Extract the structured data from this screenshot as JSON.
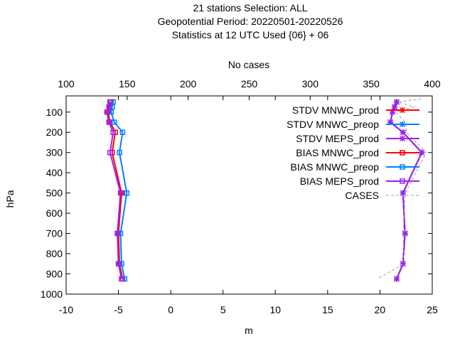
{
  "chart_data": {
    "type": "line",
    "title": [
      "21 stations Selection: ALL",
      "Geopotential  Period: 20220501-20220526",
      "Statistics at 12 UTC  Used {06} + 06"
    ],
    "xlabel": "m",
    "ylabel": "hPa",
    "x2label": "No cases",
    "xlim": [
      -10,
      25
    ],
    "x2lim": [
      100,
      400
    ],
    "ylim": [
      1000,
      20
    ],
    "xticks": [
      "-10",
      "-5",
      "0",
      "5",
      "10",
      "15",
      "20",
      "25"
    ],
    "x2ticks": [
      "100",
      "150",
      "200",
      "250",
      "300",
      "350",
      "400"
    ],
    "yticks": [
      "100",
      "200",
      "300",
      "400",
      "500",
      "600",
      "700",
      "800",
      "900",
      "1000"
    ],
    "legend_position": "top-right",
    "series": [
      {
        "name": "STDV MNWC_prod",
        "color": "#ff0000",
        "marker": "star",
        "axis": "x",
        "points": [
          [
            21.6,
            50
          ],
          [
            21.4,
            75
          ],
          [
            21.2,
            100
          ],
          [
            21.0,
            150
          ],
          [
            22.2,
            200
          ],
          [
            24.0,
            300
          ],
          [
            22.2,
            500
          ],
          [
            22.4,
            700
          ],
          [
            22.2,
            850
          ],
          [
            21.6,
            925
          ]
        ]
      },
      {
        "name": "STDV MNWC_preop",
        "color": "#0080ff",
        "marker": "star",
        "axis": "x",
        "points": [
          [
            21.6,
            50
          ],
          [
            21.4,
            75
          ],
          [
            21.2,
            100
          ],
          [
            21.0,
            150
          ],
          [
            22.2,
            200
          ],
          [
            24.0,
            300
          ],
          [
            22.2,
            500
          ],
          [
            22.4,
            700
          ],
          [
            22.2,
            850
          ],
          [
            21.6,
            925
          ]
        ]
      },
      {
        "name": "STDV MEPS_prod",
        "color": "#a020f0",
        "marker": "star",
        "axis": "x",
        "points": [
          [
            21.6,
            50
          ],
          [
            21.4,
            75
          ],
          [
            21.2,
            100
          ],
          [
            21.0,
            150
          ],
          [
            22.2,
            200
          ],
          [
            24.0,
            300
          ],
          [
            22.2,
            500
          ],
          [
            22.4,
            700
          ],
          [
            22.2,
            850
          ],
          [
            21.6,
            925
          ]
        ]
      },
      {
        "name": "BIAS MNWC_prod",
        "color": "#ff0000",
        "marker": "square",
        "axis": "x",
        "points": [
          [
            -5.7,
            50
          ],
          [
            -5.8,
            75
          ],
          [
            -6.0,
            100
          ],
          [
            -5.8,
            150
          ],
          [
            -5.3,
            200
          ],
          [
            -5.6,
            300
          ],
          [
            -4.7,
            500
          ],
          [
            -5.0,
            700
          ],
          [
            -4.9,
            850
          ],
          [
            -4.6,
            925
          ]
        ]
      },
      {
        "name": "BIAS MNWC_preop",
        "color": "#0080ff",
        "marker": "square",
        "axis": "x",
        "points": [
          [
            -5.5,
            50
          ],
          [
            -5.6,
            75
          ],
          [
            -5.7,
            100
          ],
          [
            -5.4,
            150
          ],
          [
            -4.6,
            200
          ],
          [
            -4.9,
            300
          ],
          [
            -4.2,
            500
          ],
          [
            -4.8,
            700
          ],
          [
            -4.7,
            850
          ],
          [
            -4.4,
            925
          ]
        ]
      },
      {
        "name": "BIAS MEPS_prod",
        "color": "#a020f0",
        "marker": "square",
        "axis": "x",
        "points": [
          [
            -5.8,
            50
          ],
          [
            -5.9,
            75
          ],
          [
            -6.1,
            100
          ],
          [
            -5.9,
            150
          ],
          [
            -5.5,
            200
          ],
          [
            -5.8,
            300
          ],
          [
            -4.8,
            500
          ],
          [
            -5.1,
            700
          ],
          [
            -5.0,
            850
          ],
          [
            -4.7,
            925
          ]
        ]
      },
      {
        "name": "CASES",
        "color": "#a0a0a0",
        "marker": "none",
        "dash": true,
        "axis": "x2",
        "points": [
          [
            391,
            35
          ],
          [
            372,
            50
          ],
          [
            385,
            75
          ],
          [
            370,
            100
          ],
          [
            378,
            150
          ],
          [
            379,
            200
          ],
          [
            395,
            300
          ],
          [
            378,
            500
          ],
          [
            376,
            700
          ],
          [
            377,
            850
          ],
          [
            355,
            925
          ]
        ]
      }
    ]
  }
}
